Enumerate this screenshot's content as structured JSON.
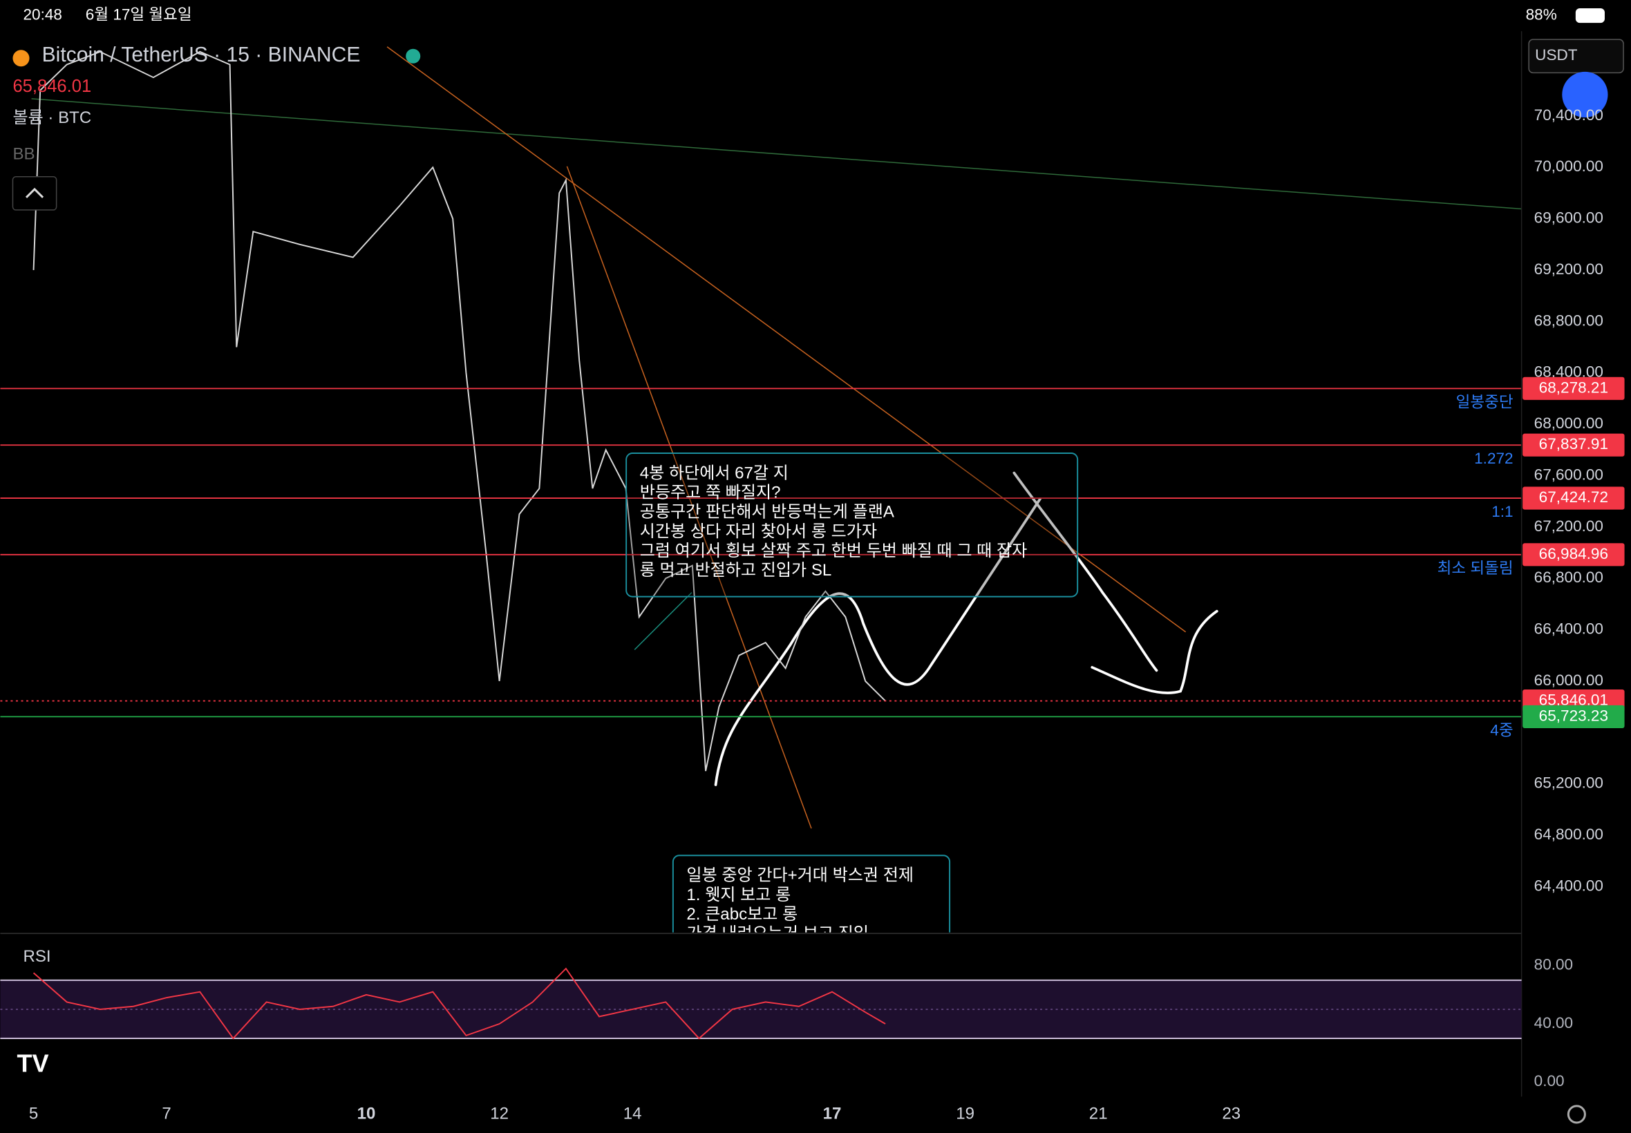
{
  "status": {
    "time": "20:48",
    "date": "6월 17일 월요일",
    "battery": "88%"
  },
  "header": {
    "symbol": "Bitcoin / TetherUS · 15 · BINANCE",
    "price": "65,846.01",
    "volume": "볼륨 · BTC",
    "indicator": "BB",
    "currency": "USDT"
  },
  "chart": {
    "xlim": [
      4.5,
      27.36
    ],
    "ylim": [
      64044,
      71060
    ],
    "xticks": [
      5,
      7,
      10,
      12,
      14,
      17,
      19,
      21,
      23
    ],
    "yticks": [
      {
        "value": 70400,
        "label": "70,400.00"
      },
      {
        "value": 70000,
        "label": "70,000.00"
      },
      {
        "value": 69600,
        "label": "69,600.00"
      },
      {
        "value": 69200,
        "label": "69,200.00"
      },
      {
        "value": 68800,
        "label": "68,800.00"
      },
      {
        "value": 68400,
        "label": "68,400.00"
      },
      {
        "value": 68000,
        "label": "68,000.00"
      },
      {
        "value": 67600,
        "label": "67,600.00"
      },
      {
        "value": 67200,
        "label": "67,200.00"
      },
      {
        "value": 66800,
        "label": "66,800.00"
      },
      {
        "value": 66400,
        "label": "66,400.00"
      },
      {
        "value": 66000,
        "label": "66,000.00"
      },
      {
        "value": 65200,
        "label": "65,200.00"
      },
      {
        "value": 64800,
        "label": "64,800.00"
      },
      {
        "value": 64400,
        "label": "64,400.00"
      }
    ],
    "levels": [
      {
        "value": 68278.21,
        "label": "68,278.21",
        "name": "일봉중단",
        "color": "#f23645"
      },
      {
        "value": 67837.91,
        "label": "67,837.91",
        "name": "1.272",
        "color": "#f23645"
      },
      {
        "value": 67424.72,
        "label": "67,424.72",
        "name": "1:1",
        "color": "#f23645"
      },
      {
        "value": 66984.96,
        "label": "66,984.96",
        "name": "최소 되돌림",
        "color": "#f23645"
      },
      {
        "value": 65846.01,
        "label": "65,846.01",
        "color": "#f23645"
      },
      {
        "value": 65723.23,
        "label": "65,723.23",
        "name": "4중",
        "color": "#22ab4a"
      }
    ],
    "price": {
      "color": "#d9d9d9",
      "x": [
        5.0,
        5.1,
        5.5,
        6.0,
        6.8,
        7.5,
        7.95,
        8.05,
        8.3,
        9.0,
        9.8,
        10.5,
        11.0,
        11.3,
        11.5,
        11.8,
        12.0,
        12.3,
        12.6,
        12.9,
        13.0,
        13.2,
        13.4,
        13.6,
        13.9,
        14.1,
        14.5,
        14.9,
        15.1,
        15.3,
        15.6,
        16.0,
        16.3,
        16.6,
        16.9,
        17.2,
        17.5,
        17.8
      ],
      "values": [
        69200,
        70600,
        70800,
        70900,
        70700,
        70900,
        70800,
        68600,
        69500,
        69400,
        69300,
        69700,
        70000,
        69600,
        68400,
        67000,
        66000,
        67300,
        67500,
        69800,
        69900,
        68500,
        67500,
        67800,
        67500,
        66500,
        66800,
        66900,
        65300,
        65800,
        66200,
        66300,
        66100,
        66500,
        66700,
        66500,
        66000,
        65846
      ]
    },
    "rsi": {
      "label": "RSI",
      "color": "#f23645",
      "ylim": [
        0,
        100
      ],
      "band": [
        70,
        30
      ],
      "yticks": [
        {
          "value": 80,
          "label": "80.00"
        },
        {
          "value": 40,
          "label": "40.00"
        },
        {
          "value": 0,
          "label": "0.00"
        }
      ],
      "x": [
        5.0,
        5.5,
        6.0,
        6.5,
        7.0,
        7.5,
        8.0,
        8.5,
        9.0,
        9.5,
        10.0,
        10.5,
        11.0,
        11.5,
        12.0,
        12.5,
        13.0,
        13.5,
        14.0,
        14.5,
        15.0,
        15.5,
        16.0,
        16.5,
        17.0,
        17.5,
        17.8
      ],
      "values": [
        75,
        55,
        50,
        52,
        58,
        62,
        30,
        55,
        50,
        52,
        60,
        55,
        62,
        32,
        40,
        55,
        78,
        45,
        50,
        55,
        30,
        50,
        55,
        52,
        62,
        48,
        40
      ]
    }
  },
  "notes": [
    {
      "lines": [
        "4봉 하단에서 67갈 지",
        "반등주고 쭉 빠질지?",
        "공통구간 판단해서 반등먹는게 플랜A",
        "시간봉 상다 자리 찾아서 롱 드가자",
        "그럼 여기서 횡보 살짝 주고 한번 두번 빠질 때 그 때 잡자",
        "롱 먹고 반절하고 진입가 SL"
      ]
    },
    {
      "lines": [
        "일봉 중앙 간다+거대 박스권 전제",
        "1. 웻지 보고 롱",
        "2. 큰abc보고 롱",
        "가격 내려오는거 보고 진입"
      ]
    }
  ]
}
